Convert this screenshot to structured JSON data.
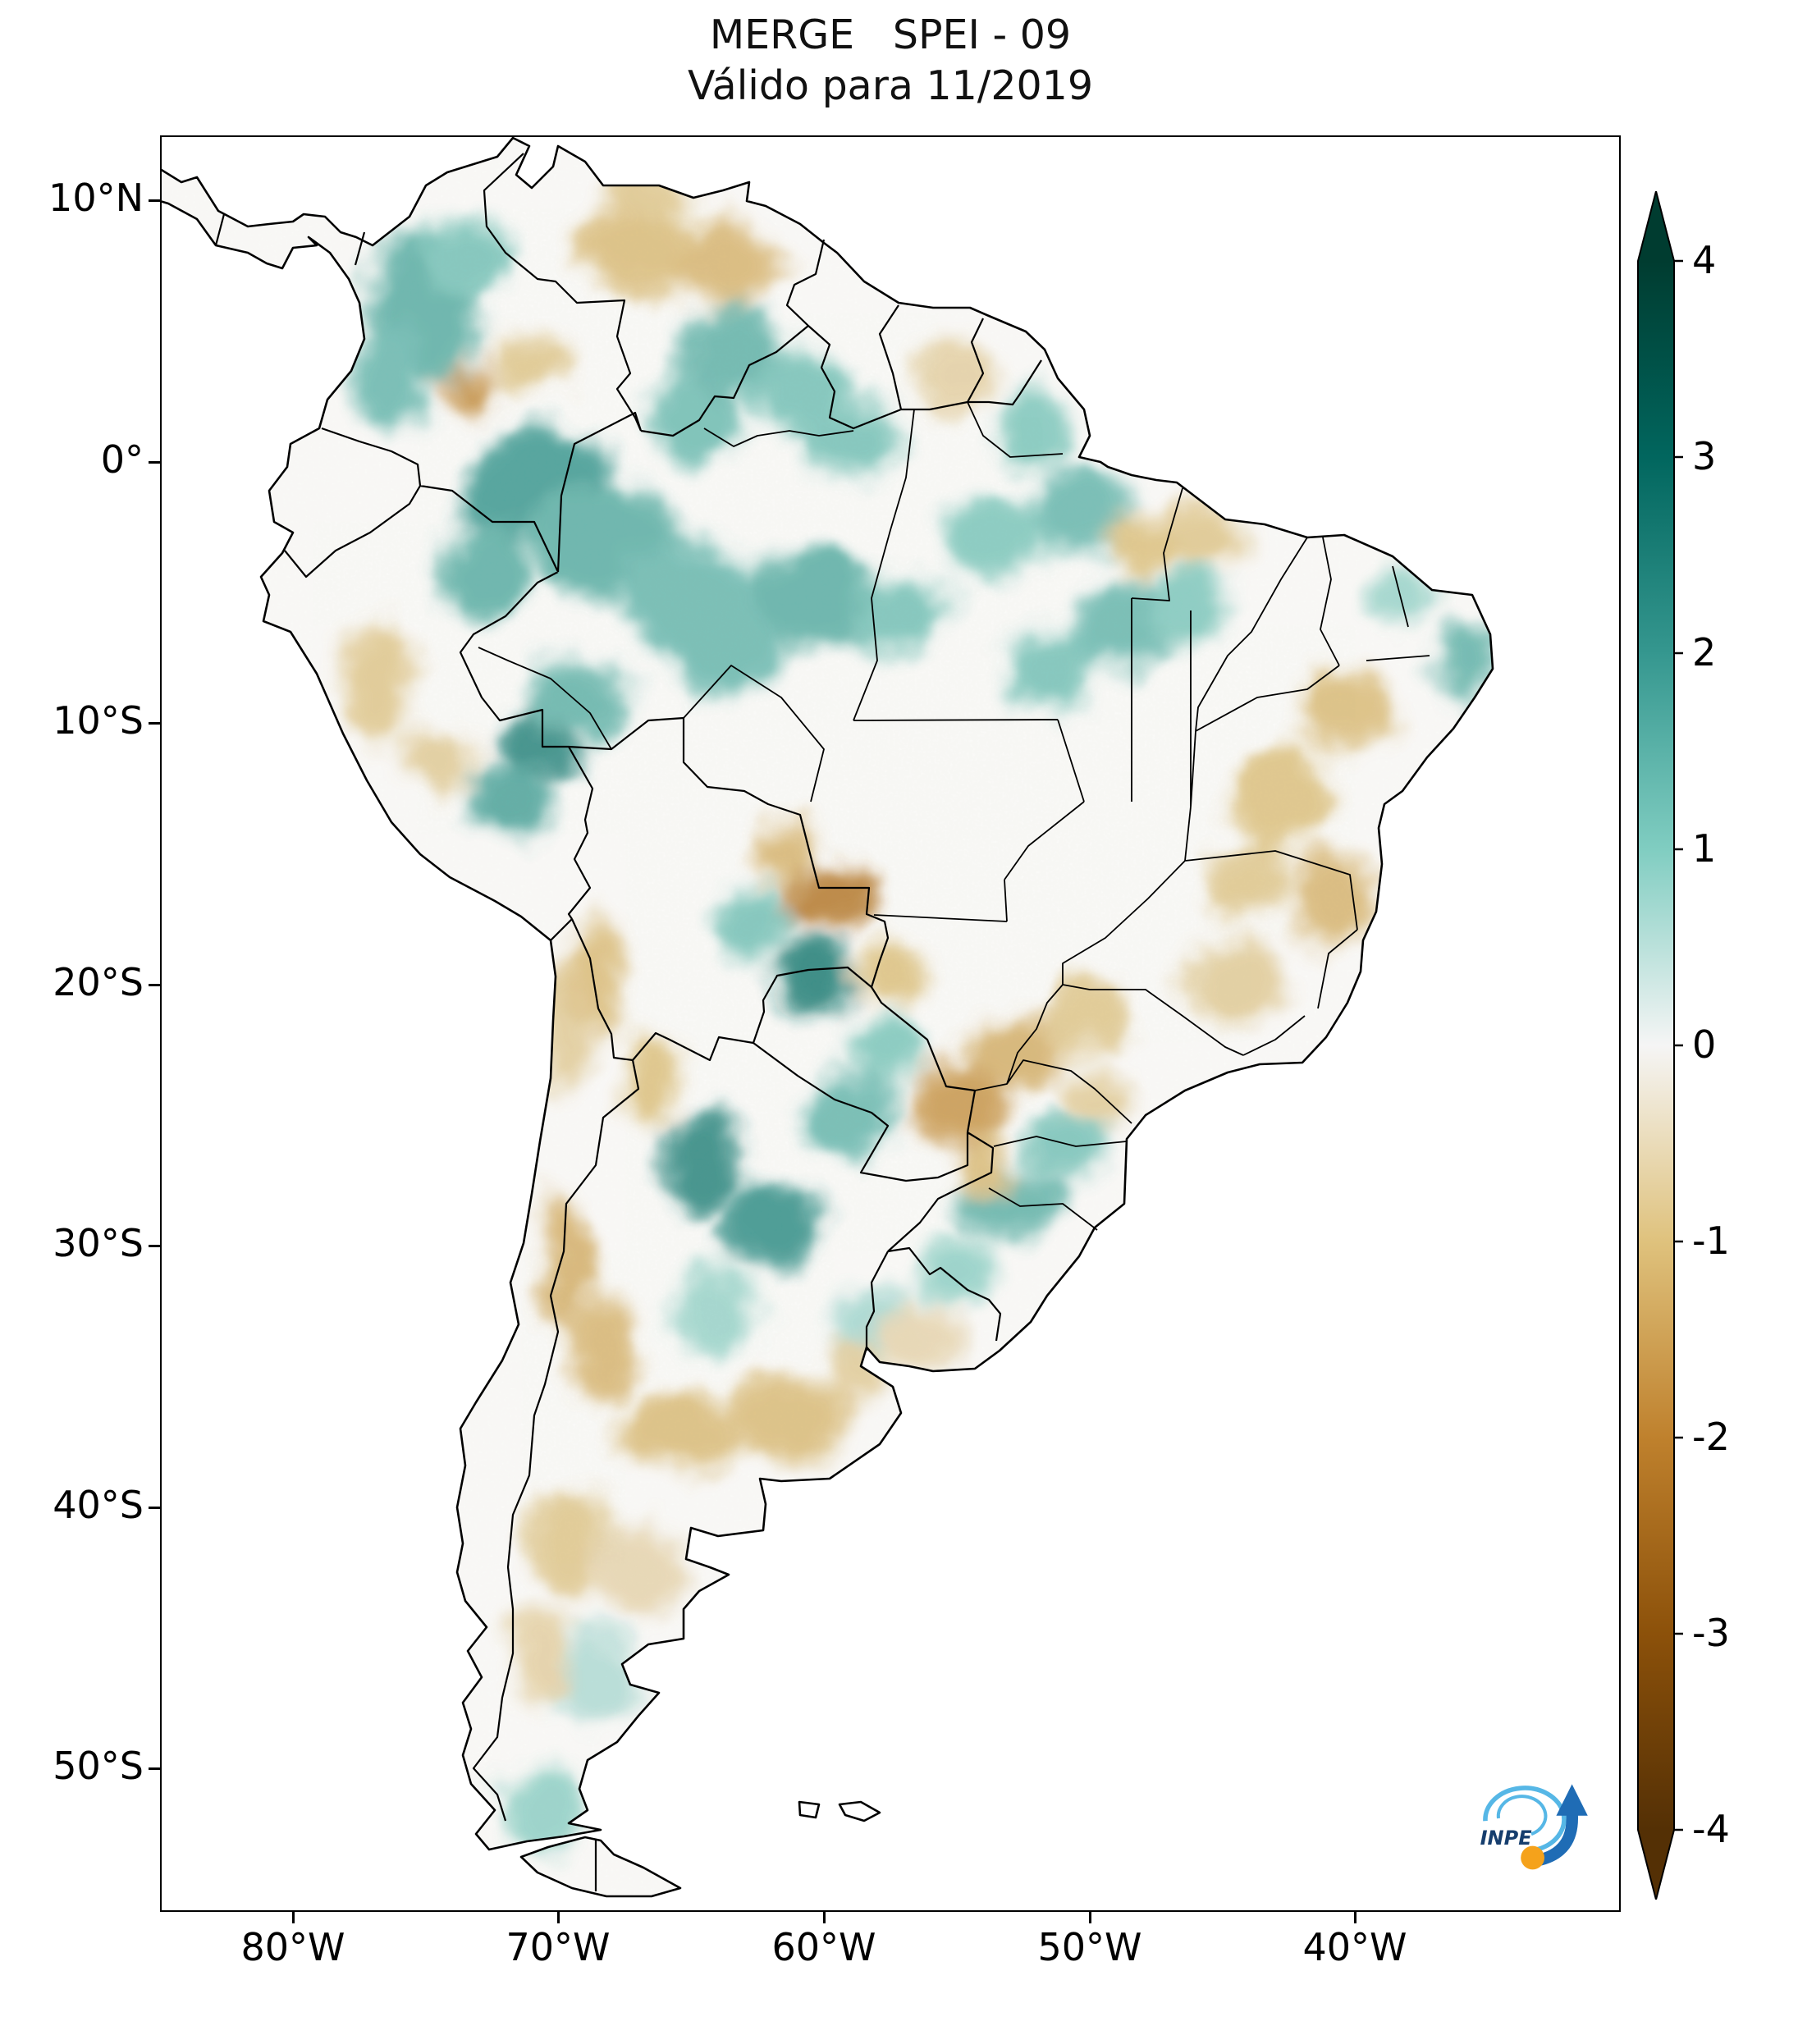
{
  "logo": {
    "text": "INPE"
  },
  "chart_data": {
    "type": "heatmap",
    "title": "MERGE   SPEI - 09",
    "subtitle": "Válido para 11/2019",
    "product": "MERGE",
    "index": "SPEI - 09",
    "valid_for": "11/2019",
    "extent": {
      "lon_min": -85,
      "lon_max": -30,
      "lat_min": -55.5,
      "lat_max": 12.5
    },
    "x_ticks": [
      {
        "label": "80°W",
        "lon": -80
      },
      {
        "label": "70°W",
        "lon": -70
      },
      {
        "label": "60°W",
        "lon": -60
      },
      {
        "label": "50°W",
        "lon": -50
      },
      {
        "label": "40°W",
        "lon": -40
      }
    ],
    "y_ticks": [
      {
        "label": "10°N",
        "lat": 10
      },
      {
        "label": "0°",
        "lat": 0
      },
      {
        "label": "10°S",
        "lat": -10
      },
      {
        "label": "20°S",
        "lat": -20
      },
      {
        "label": "30°S",
        "lat": -30
      },
      {
        "label": "40°S",
        "lat": -40
      },
      {
        "label": "50°S",
        "lat": -50
      }
    ],
    "colorbar": {
      "min": -4,
      "max": 4,
      "ticks": [
        "4",
        "3",
        "2",
        "1",
        "0",
        "-1",
        "-2",
        "-3",
        "-4"
      ],
      "colormap": "BrBG",
      "position": "right",
      "extend": "both",
      "stops": [
        {
          "value": -4,
          "color": "#543005"
        },
        {
          "value": -3,
          "color": "#8c510a"
        },
        {
          "value": -2,
          "color": "#bf812d"
        },
        {
          "value": -1,
          "color": "#dfc27d"
        },
        {
          "value": 0,
          "color": "#f5f5f5"
        },
        {
          "value": 1,
          "color": "#80cdc1"
        },
        {
          "value": 2,
          "color": "#35978f"
        },
        {
          "value": 3,
          "color": "#01665e"
        },
        {
          "value": 4,
          "color": "#003c30"
        }
      ]
    },
    "field_samples": [
      {
        "lon": -75.0,
        "lat": 6.0,
        "value": 1.6,
        "rx": 2.2,
        "ry": 2.8
      },
      {
        "lon": -76.3,
        "lat": 3.0,
        "value": 1.4,
        "rx": 1.4,
        "ry": 2.0
      },
      {
        "lon": -73.5,
        "lat": 7.8,
        "value": 1.2,
        "rx": 1.6,
        "ry": 1.6
      },
      {
        "lon": -70.8,
        "lat": -1.0,
        "value": 2.0,
        "rx": 2.8,
        "ry": 2.2
      },
      {
        "lon": -72.8,
        "lat": -4.3,
        "value": 1.6,
        "rx": 1.8,
        "ry": 1.8
      },
      {
        "lon": -68.3,
        "lat": -3.0,
        "value": 1.6,
        "rx": 2.6,
        "ry": 2.2
      },
      {
        "lon": -65.2,
        "lat": -5.0,
        "value": 1.4,
        "rx": 2.6,
        "ry": 2.0
      },
      {
        "lon": -70.7,
        "lat": -10.8,
        "value": 2.4,
        "rx": 1.6,
        "ry": 1.4
      },
      {
        "lon": -71.8,
        "lat": -13.0,
        "value": 1.8,
        "rx": 1.5,
        "ry": 1.3
      },
      {
        "lon": -69.0,
        "lat": -9.0,
        "value": 1.5,
        "rx": 1.8,
        "ry": 1.5
      },
      {
        "lon": -63.8,
        "lat": -7.2,
        "value": 1.4,
        "rx": 2.2,
        "ry": 1.8
      },
      {
        "lon": -60.3,
        "lat": -5.2,
        "value": 1.6,
        "rx": 2.4,
        "ry": 1.9
      },
      {
        "lon": -57.0,
        "lat": -5.8,
        "value": 1.2,
        "rx": 1.8,
        "ry": 1.5
      },
      {
        "lon": -64.8,
        "lat": 1.6,
        "value": 1.3,
        "rx": 1.8,
        "ry": 1.6
      },
      {
        "lon": -63.5,
        "lat": 4.2,
        "value": 1.5,
        "rx": 1.7,
        "ry": 1.9
      },
      {
        "lon": -61.0,
        "lat": 2.8,
        "value": 1.2,
        "rx": 1.6,
        "ry": 1.6
      },
      {
        "lon": -59.0,
        "lat": 1.0,
        "value": 1.2,
        "rx": 1.8,
        "ry": 1.4
      },
      {
        "lon": -52.0,
        "lat": 1.2,
        "value": 1.1,
        "rx": 1.5,
        "ry": 1.4
      },
      {
        "lon": -50.3,
        "lat": -1.8,
        "value": 1.4,
        "rx": 1.8,
        "ry": 1.6
      },
      {
        "lon": -53.5,
        "lat": -3.0,
        "value": 1.1,
        "rx": 2.0,
        "ry": 1.5
      },
      {
        "lon": -48.8,
        "lat": -6.2,
        "value": 1.4,
        "rx": 1.8,
        "ry": 1.8
      },
      {
        "lon": -46.3,
        "lat": -5.6,
        "value": 1.1,
        "rx": 1.4,
        "ry": 1.4
      },
      {
        "lon": -51.5,
        "lat": -8.0,
        "value": 1.2,
        "rx": 1.7,
        "ry": 1.6
      },
      {
        "lon": -35.9,
        "lat": -7.6,
        "value": 1.5,
        "rx": 1.1,
        "ry": 1.4
      },
      {
        "lon": -38.3,
        "lat": -5.0,
        "value": 0.8,
        "rx": 1.3,
        "ry": 1.1
      },
      {
        "lon": -60.4,
        "lat": -19.8,
        "value": 2.6,
        "rx": 1.5,
        "ry": 1.6
      },
      {
        "lon": -62.5,
        "lat": -17.5,
        "value": 1.2,
        "rx": 1.4,
        "ry": 1.2
      },
      {
        "lon": -64.6,
        "lat": -26.8,
        "value": 2.4,
        "rx": 1.5,
        "ry": 1.9
      },
      {
        "lon": -62.0,
        "lat": -29.3,
        "value": 2.2,
        "rx": 1.9,
        "ry": 1.5
      },
      {
        "lon": -59.0,
        "lat": -25.0,
        "value": 1.4,
        "rx": 1.9,
        "ry": 1.5
      },
      {
        "lon": -57.5,
        "lat": -22.5,
        "value": 1.1,
        "rx": 1.4,
        "ry": 1.3
      },
      {
        "lon": -53.2,
        "lat": -28.3,
        "value": 1.5,
        "rx": 2.0,
        "ry": 1.4
      },
      {
        "lon": -50.9,
        "lat": -26.3,
        "value": 1.2,
        "rx": 1.4,
        "ry": 1.2
      },
      {
        "lon": -55.0,
        "lat": -31.0,
        "value": 0.9,
        "rx": 1.6,
        "ry": 1.2
      },
      {
        "lon": -58.0,
        "lat": -33.0,
        "value": 0.7,
        "rx": 1.8,
        "ry": 1.3
      },
      {
        "lon": -64.0,
        "lat": -32.5,
        "value": 0.8,
        "rx": 1.6,
        "ry": 1.6
      },
      {
        "lon": -70.5,
        "lat": -51.5,
        "value": 0.9,
        "rx": 1.7,
        "ry": 1.5
      },
      {
        "lon": -68.5,
        "lat": -46.5,
        "value": 0.6,
        "rx": 1.8,
        "ry": 1.8
      },
      {
        "lon": -67.0,
        "lat": 8.2,
        "value": -1.1,
        "rx": 2.4,
        "ry": 1.6
      },
      {
        "lon": -63.5,
        "lat": 7.6,
        "value": -1.2,
        "rx": 1.9,
        "ry": 1.5
      },
      {
        "lon": -66.5,
        "lat": 10.3,
        "value": -0.9,
        "rx": 1.7,
        "ry": 0.9
      },
      {
        "lon": -73.3,
        "lat": 2.9,
        "value": -1.8,
        "rx": 0.9,
        "ry": 0.9
      },
      {
        "lon": -71.0,
        "lat": 3.8,
        "value": -0.9,
        "rx": 1.4,
        "ry": 1.2
      },
      {
        "lon": -76.8,
        "lat": -8.5,
        "value": -0.9,
        "rx": 1.3,
        "ry": 2.2
      },
      {
        "lon": -74.5,
        "lat": -11.5,
        "value": -0.8,
        "rx": 1.4,
        "ry": 1.4
      },
      {
        "lon": -55.2,
        "lat": 3.3,
        "value": -0.7,
        "rx": 1.6,
        "ry": 1.2
      },
      {
        "lon": -45.8,
        "lat": -2.8,
        "value": -0.9,
        "rx": 1.9,
        "ry": 1.4
      },
      {
        "lon": -48.0,
        "lat": -3.2,
        "value": -1.0,
        "rx": 1.3,
        "ry": 1.1
      },
      {
        "lon": -40.5,
        "lat": -9.5,
        "value": -1.1,
        "rx": 1.9,
        "ry": 1.6
      },
      {
        "lon": -42.8,
        "lat": -13.0,
        "value": -1.0,
        "rx": 1.9,
        "ry": 1.9
      },
      {
        "lon": -40.8,
        "lat": -16.8,
        "value": -1.2,
        "rx": 1.6,
        "ry": 1.8
      },
      {
        "lon": -44.5,
        "lat": -19.8,
        "value": -0.8,
        "rx": 1.9,
        "ry": 1.6
      },
      {
        "lon": -44.0,
        "lat": -16.0,
        "value": -0.9,
        "rx": 1.4,
        "ry": 1.4
      },
      {
        "lon": -59.7,
        "lat": -16.6,
        "value": -2.2,
        "rx": 1.7,
        "ry": 1.2
      },
      {
        "lon": -61.5,
        "lat": -15.0,
        "value": -1.2,
        "rx": 1.4,
        "ry": 1.1
      },
      {
        "lon": -57.5,
        "lat": -19.5,
        "value": -1.0,
        "rx": 1.2,
        "ry": 1.2
      },
      {
        "lon": -68.6,
        "lat": -19.8,
        "value": -1.1,
        "rx": 1.0,
        "ry": 2.4
      },
      {
        "lon": -66.5,
        "lat": -23.5,
        "value": -1.0,
        "rx": 1.1,
        "ry": 1.7
      },
      {
        "lon": -54.8,
        "lat": -24.6,
        "value": -1.7,
        "rx": 1.7,
        "ry": 1.7
      },
      {
        "lon": -52.6,
        "lat": -22.6,
        "value": -1.3,
        "rx": 1.7,
        "ry": 1.4
      },
      {
        "lon": -50.0,
        "lat": -21.3,
        "value": -0.9,
        "rx": 1.7,
        "ry": 1.3
      },
      {
        "lon": -54.0,
        "lat": -27.0,
        "value": -1.1,
        "rx": 1.1,
        "ry": 0.9
      },
      {
        "lon": -49.8,
        "lat": -24.3,
        "value": -0.8,
        "rx": 1.2,
        "ry": 1.0
      },
      {
        "lon": -69.8,
        "lat": -30.5,
        "value": -1.3,
        "rx": 0.9,
        "ry": 2.6
      },
      {
        "lon": -68.3,
        "lat": -34.0,
        "value": -1.2,
        "rx": 1.3,
        "ry": 2.0
      },
      {
        "lon": -65.5,
        "lat": -37.3,
        "value": -1.1,
        "rx": 2.2,
        "ry": 1.6
      },
      {
        "lon": -61.3,
        "lat": -36.6,
        "value": -1.1,
        "rx": 2.2,
        "ry": 1.6
      },
      {
        "lon": -58.8,
        "lat": -34.8,
        "value": -0.8,
        "rx": 1.3,
        "ry": 0.9
      },
      {
        "lon": -69.5,
        "lat": -41.5,
        "value": -0.9,
        "rx": 1.4,
        "ry": 2.2
      },
      {
        "lon": -70.8,
        "lat": -45.8,
        "value": -0.7,
        "rx": 1.1,
        "ry": 1.7
      },
      {
        "lon": -67.0,
        "lat": -42.5,
        "value": -0.6,
        "rx": 1.7,
        "ry": 1.7
      },
      {
        "lon": -56.3,
        "lat": -33.5,
        "value": -0.6,
        "rx": 1.5,
        "ry": 1.2
      },
      {
        "lon": -70.0,
        "lat": -22.0,
        "value": -0.8,
        "rx": 0.9,
        "ry": 2.2
      }
    ]
  }
}
